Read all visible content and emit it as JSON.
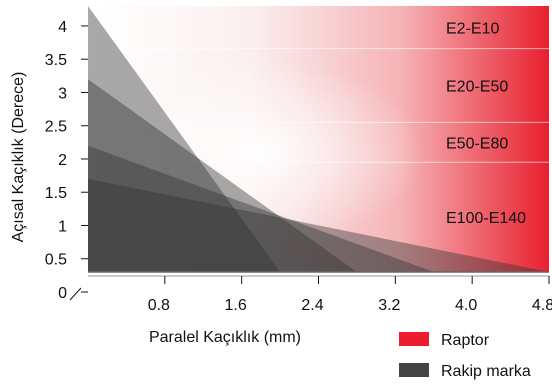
{
  "chart_data": {
    "type": "area",
    "xlabel": "Paralel Kaçıklık (mm)",
    "ylabel": "Açısal Kaçıklık (Derece)",
    "xlim": [
      0,
      4.8
    ],
    "ylim": [
      0,
      4.3
    ],
    "x_ticks": [
      "0.8",
      "1.6",
      "2.4",
      "3.2",
      "4.0",
      "4.8"
    ],
    "y_ticks": [
      "0",
      "0.5",
      "1",
      "1.5",
      "2",
      "2.5",
      "3",
      "3.5",
      "4"
    ],
    "bands": [
      {
        "label": "E2-E10",
        "ymin": 3.66,
        "ymax": 4.3
      },
      {
        "label": "E20-E50",
        "ymin": 2.55,
        "ymax": 3.66
      },
      {
        "label": "E50-E80",
        "ymin": 1.95,
        "ymax": 2.55
      },
      {
        "label": "E100-E140",
        "ymin": 0.3,
        "ymax": 1.95
      }
    ],
    "series": [
      {
        "label": "E2-E10",
        "points": [
          [
            0,
            4.3
          ],
          [
            0,
            0.3
          ],
          [
            2.0,
            0.3
          ]
        ]
      },
      {
        "label": "E20-E50",
        "points": [
          [
            0,
            3.2
          ],
          [
            0,
            0.3
          ],
          [
            2.8,
            0.3
          ]
        ]
      },
      {
        "label": "E50-E80",
        "points": [
          [
            0,
            2.2
          ],
          [
            0,
            0.3
          ],
          [
            3.6,
            0.3
          ]
        ]
      },
      {
        "label": "E100-E140",
        "points": [
          [
            0,
            1.7
          ],
          [
            0,
            0.3
          ],
          [
            4.8,
            0.3
          ]
        ]
      }
    ],
    "legend": {
      "position": "bottom-right",
      "items": [
        {
          "label": "Raptor",
          "color": "#ed1c2e"
        },
        {
          "label": "Rakip marka",
          "color": "#444444"
        }
      ]
    },
    "colors": {
      "raptor": "#ed1c2e",
      "competitor": "#444444",
      "area_fill": "#333333",
      "band_line": "#ffffff"
    }
  }
}
